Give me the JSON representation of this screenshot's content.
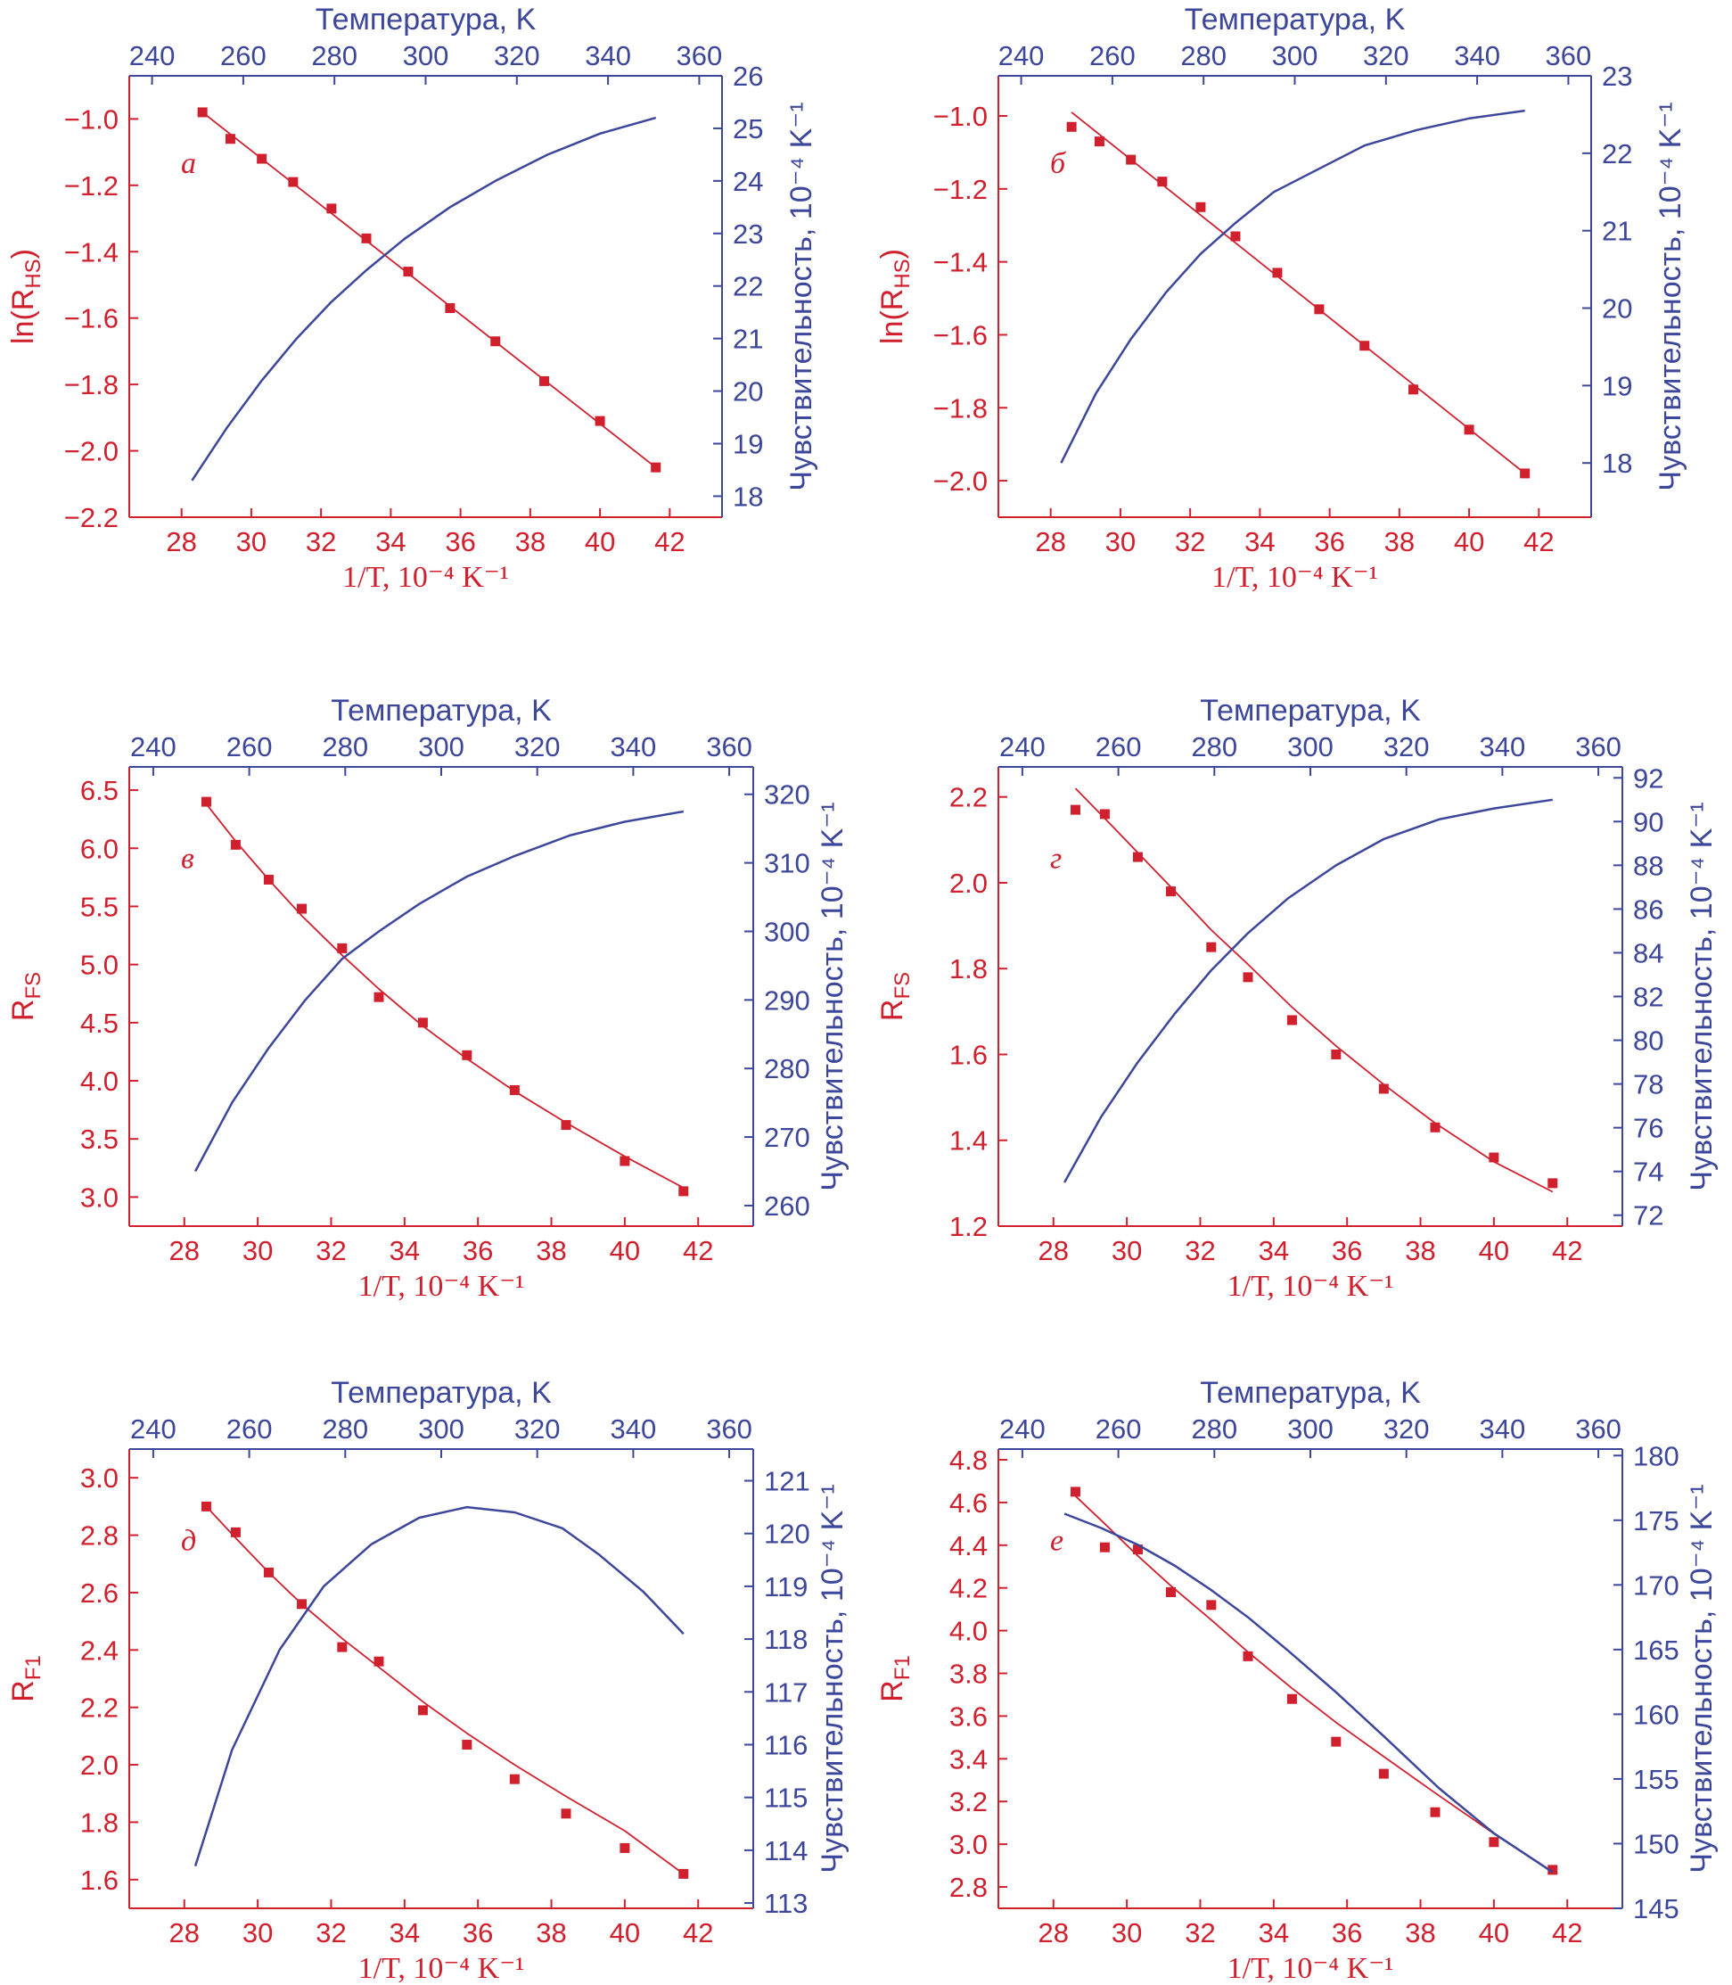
{
  "colors": {
    "red": "#d0202e",
    "blue": "#3c469a"
  },
  "chart_data": [
    {
      "id": "a",
      "panel_label": "а",
      "type": "line",
      "xlabel": "1/T, 10⁻⁴ K⁻¹",
      "ylabel": "ln(R",
      "ylabel_sub": "HS",
      "ylabel_suffix": ")",
      "y2label": "Чувствительность, 10⁻⁴ K⁻¹",
      "x2label": "Температура, K",
      "xlim": [
        26.5,
        43.5
      ],
      "xticks": [
        28,
        30,
        32,
        34,
        36,
        38,
        40,
        42
      ],
      "ylim": [
        -2.2,
        -0.87
      ],
      "yticks": [
        -2.2,
        -2.0,
        -1.8,
        -1.6,
        -1.4,
        -1.2,
        -1.0
      ],
      "ydecimals": 1,
      "y2lim": [
        17.6,
        26
      ],
      "y2ticks": [
        18,
        19,
        20,
        21,
        22,
        23,
        24,
        25,
        26
      ],
      "y2decimals": 0,
      "x2lim": [
        235,
        365
      ],
      "x2ticks": [
        240,
        260,
        280,
        300,
        320,
        340,
        360
      ],
      "series": [
        {
          "kind": "points",
          "color": "red",
          "x": [
            28.6,
            29.4,
            30.3,
            31.2,
            32.3,
            33.3,
            34.5,
            35.7,
            37.0,
            38.4,
            40.0,
            41.6
          ],
          "y": [
            -0.98,
            -1.06,
            -1.12,
            -1.19,
            -1.27,
            -1.36,
            -1.46,
            -1.57,
            -1.67,
            -1.79,
            -1.91,
            -2.05
          ]
        },
        {
          "kind": "fit",
          "color": "red",
          "x": [
            28.6,
            41.6
          ],
          "y": [
            -0.98,
            -2.05
          ]
        },
        {
          "kind": "sensitivity",
          "color": "blue",
          "x": [
            28.3,
            29.3,
            30.3,
            31.3,
            32.3,
            33.3,
            34.4,
            35.7,
            37.0,
            38.5,
            40.0,
            41.6
          ],
          "y": [
            18.3,
            19.3,
            20.2,
            21.0,
            21.7,
            22.3,
            22.9,
            23.5,
            24.0,
            24.5,
            24.9,
            25.2
          ]
        }
      ]
    },
    {
      "id": "b",
      "panel_label": "б",
      "type": "line",
      "xlabel": "1/T, 10⁻⁴ K⁻¹",
      "ylabel": "ln(R",
      "ylabel_sub": "HS",
      "ylabel_suffix": ")",
      "y2label": "Чувствительность, 10⁻⁴ K⁻¹",
      "x2label": "Температура, K",
      "xlim": [
        26.5,
        43.5
      ],
      "xticks": [
        28,
        30,
        32,
        34,
        36,
        38,
        40,
        42
      ],
      "ylim": [
        -2.1,
        -0.89
      ],
      "yticks": [
        -2.0,
        -1.8,
        -1.6,
        -1.4,
        -1.2,
        -1.0
      ],
      "ydecimals": 1,
      "y2lim": [
        17.3,
        23
      ],
      "y2ticks": [
        18,
        19,
        20,
        21,
        22,
        23
      ],
      "y2decimals": 0,
      "x2lim": [
        235,
        365
      ],
      "x2ticks": [
        240,
        260,
        280,
        300,
        320,
        340,
        360
      ],
      "series": [
        {
          "kind": "points",
          "color": "red",
          "x": [
            28.6,
            29.4,
            30.3,
            31.2,
            32.3,
            33.3,
            34.5,
            35.7,
            37.0,
            38.4,
            40.0,
            41.6
          ],
          "y": [
            -1.03,
            -1.07,
            -1.12,
            -1.18,
            -1.25,
            -1.33,
            -1.43,
            -1.53,
            -1.63,
            -1.75,
            -1.86,
            -1.98
          ]
        },
        {
          "kind": "fit",
          "color": "red",
          "x": [
            28.6,
            41.6
          ],
          "y": [
            -0.99,
            -1.98
          ]
        },
        {
          "kind": "sensitivity",
          "color": "blue",
          "x": [
            28.3,
            29.3,
            30.3,
            31.3,
            32.3,
            33.3,
            34.4,
            35.7,
            37.0,
            38.5,
            40.0,
            41.6
          ],
          "y": [
            18.0,
            18.9,
            19.6,
            20.2,
            20.7,
            21.1,
            21.5,
            21.8,
            22.1,
            22.3,
            22.45,
            22.55
          ]
        }
      ]
    },
    {
      "id": "c",
      "panel_label": "в",
      "type": "line",
      "xlabel": "1/T, 10⁻⁴ K⁻¹",
      "ylabel": "R",
      "ylabel_sub": "FS",
      "ylabel_suffix": "",
      "y2label": "Чувствительность, 10⁻⁴ K⁻¹",
      "x2label": "Температура, K",
      "xlim": [
        26.5,
        43.5
      ],
      "xticks": [
        28,
        30,
        32,
        34,
        36,
        38,
        40,
        42
      ],
      "ylim": [
        2.75,
        6.7
      ],
      "yticks": [
        3.0,
        3.5,
        4.0,
        4.5,
        5.0,
        5.5,
        6.0,
        6.5
      ],
      "ydecimals": 1,
      "y2lim": [
        257,
        324
      ],
      "y2ticks": [
        260,
        270,
        280,
        290,
        300,
        310,
        320
      ],
      "y2decimals": 0,
      "x2lim": [
        235,
        365
      ],
      "x2ticks": [
        240,
        260,
        280,
        300,
        320,
        340,
        360
      ],
      "series": [
        {
          "kind": "points",
          "color": "red",
          "x": [
            28.6,
            29.4,
            30.3,
            31.2,
            32.3,
            33.3,
            34.5,
            35.7,
            37.0,
            38.4,
            40.0,
            41.6
          ],
          "y": [
            6.4,
            6.03,
            5.73,
            5.48,
            5.14,
            4.72,
            4.5,
            4.22,
            3.92,
            3.62,
            3.31,
            3.05
          ]
        },
        {
          "kind": "fit",
          "color": "red",
          "x": [
            28.6,
            29.4,
            30.3,
            31.2,
            32.3,
            33.3,
            34.5,
            35.7,
            37.0,
            38.4,
            40.0,
            41.6
          ],
          "y": [
            6.38,
            6.06,
            5.73,
            5.42,
            5.08,
            4.79,
            4.47,
            4.19,
            3.91,
            3.64,
            3.35,
            3.08
          ]
        },
        {
          "kind": "sensitivity",
          "color": "blue",
          "x": [
            28.3,
            29.3,
            30.3,
            31.3,
            32.3,
            33.3,
            34.4,
            35.7,
            37.0,
            38.5,
            40.0,
            41.6
          ],
          "y": [
            265,
            275,
            283,
            290,
            296,
            300,
            304,
            308,
            311,
            314,
            316,
            317.5
          ]
        }
      ]
    },
    {
      "id": "d",
      "panel_label": "г",
      "type": "line",
      "xlabel": "1/T, 10⁻⁴ K⁻¹",
      "ylabel": "R",
      "ylabel_sub": "FS",
      "ylabel_suffix": "",
      "y2label": "Чувствительность, 10⁻⁴ K⁻¹",
      "x2label": "Температура, K",
      "xlim": [
        26.5,
        43.5
      ],
      "xticks": [
        28,
        30,
        32,
        34,
        36,
        38,
        40,
        42
      ],
      "ylim": [
        1.2,
        2.27
      ],
      "yticks": [
        1.2,
        1.4,
        1.6,
        1.8,
        2.0,
        2.2
      ],
      "ydecimals": 1,
      "y2lim": [
        71.5,
        92.5
      ],
      "y2ticks": [
        72,
        74,
        76,
        78,
        80,
        82,
        84,
        86,
        88,
        90,
        92
      ],
      "y2decimals": 0,
      "x2lim": [
        235,
        365
      ],
      "x2ticks": [
        240,
        260,
        280,
        300,
        320,
        340,
        360
      ],
      "series": [
        {
          "kind": "points",
          "color": "red",
          "x": [
            28.6,
            29.4,
            30.3,
            31.2,
            32.3,
            33.3,
            34.5,
            35.7,
            37.0,
            38.4,
            40.0,
            41.6
          ],
          "y": [
            2.17,
            2.16,
            2.06,
            1.98,
            1.85,
            1.78,
            1.68,
            1.6,
            1.52,
            1.43,
            1.36,
            1.3
          ]
        },
        {
          "kind": "fit",
          "color": "red",
          "x": [
            28.6,
            29.4,
            30.3,
            31.2,
            32.3,
            33.3,
            34.5,
            35.7,
            37.0,
            38.4,
            40.0,
            41.6
          ],
          "y": [
            2.22,
            2.15,
            2.07,
            1.99,
            1.89,
            1.81,
            1.71,
            1.62,
            1.53,
            1.44,
            1.35,
            1.28
          ]
        },
        {
          "kind": "sensitivity",
          "color": "blue",
          "x": [
            28.3,
            29.3,
            30.3,
            31.3,
            32.3,
            33.3,
            34.4,
            35.7,
            37.0,
            38.5,
            40.0,
            41.6
          ],
          "y": [
            73.5,
            76.5,
            79.0,
            81.2,
            83.2,
            84.9,
            86.5,
            88.0,
            89.2,
            90.1,
            90.6,
            91.0
          ]
        }
      ]
    },
    {
      "id": "e",
      "panel_label": "д",
      "type": "line",
      "xlabel": "1/T, 10⁻⁴ K⁻¹",
      "ylabel": "R",
      "ylabel_sub": "F1",
      "ylabel_suffix": "",
      "y2label": "Чувствительность, 10⁻⁴ K⁻¹",
      "x2label": "Температура, K",
      "xlim": [
        26.5,
        43.5
      ],
      "xticks": [
        28,
        30,
        32,
        34,
        36,
        38,
        40,
        42
      ],
      "ylim": [
        1.5,
        3.1
      ],
      "yticks": [
        1.6,
        1.8,
        2.0,
        2.2,
        2.4,
        2.6,
        2.8,
        3.0
      ],
      "ydecimals": 1,
      "y2lim": [
        112.9,
        121.6
      ],
      "y2ticks": [
        113,
        114,
        115,
        116,
        117,
        118,
        119,
        120,
        121
      ],
      "y2decimals": 0,
      "x2lim": [
        235,
        365
      ],
      "x2ticks": [
        240,
        260,
        280,
        300,
        320,
        340,
        360
      ],
      "series": [
        {
          "kind": "points",
          "color": "red",
          "x": [
            28.6,
            29.4,
            30.3,
            31.2,
            32.3,
            33.3,
            34.5,
            35.7,
            37.0,
            38.4,
            40.0,
            41.6
          ],
          "y": [
            2.9,
            2.81,
            2.67,
            2.56,
            2.41,
            2.36,
            2.19,
            2.07,
            1.95,
            1.83,
            1.71,
            1.62
          ]
        },
        {
          "kind": "fit",
          "color": "red",
          "x": [
            28.6,
            29.4,
            30.3,
            31.2,
            32.3,
            33.3,
            34.5,
            35.7,
            37.0,
            38.4,
            40.0,
            41.6
          ],
          "y": [
            2.9,
            2.79,
            2.67,
            2.56,
            2.44,
            2.34,
            2.22,
            2.11,
            2.0,
            1.89,
            1.77,
            1.62
          ]
        },
        {
          "kind": "sensitivity",
          "color": "blue",
          "x": [
            28.3,
            29.3,
            30.6,
            31.8,
            33.1,
            34.4,
            35.7,
            37.0,
            38.3,
            39.3,
            40.5,
            41.6
          ],
          "y": [
            113.7,
            115.9,
            117.8,
            119.0,
            119.8,
            120.3,
            120.5,
            120.4,
            120.1,
            119.6,
            118.9,
            118.1
          ]
        }
      ]
    },
    {
      "id": "f",
      "panel_label": "е",
      "type": "line",
      "xlabel": "1/T, 10⁻⁴ K⁻¹",
      "ylabel": "R",
      "ylabel_sub": "F1",
      "ylabel_suffix": "",
      "y2label": "Чувствительность, 10⁻⁴ K⁻¹",
      "x2label": "Температура, K",
      "xlim": [
        26.5,
        43.5
      ],
      "xticks": [
        28,
        30,
        32,
        34,
        36,
        38,
        40,
        42
      ],
      "ylim": [
        2.7,
        4.85
      ],
      "yticks": [
        2.8,
        3.0,
        3.2,
        3.4,
        3.6,
        3.8,
        4.0,
        4.2,
        4.4,
        4.6,
        4.8
      ],
      "ydecimals": 1,
      "y2lim": [
        145,
        180.5
      ],
      "y2ticks": [
        145,
        150,
        155,
        160,
        165,
        170,
        175,
        180
      ],
      "y2decimals": 0,
      "x2lim": [
        235,
        365
      ],
      "x2ticks": [
        240,
        260,
        280,
        300,
        320,
        340,
        360
      ],
      "series": [
        {
          "kind": "points",
          "color": "red",
          "x": [
            28.6,
            29.4,
            30.3,
            31.2,
            32.3,
            33.3,
            34.5,
            35.7,
            37.0,
            38.4,
            40.0,
            41.6
          ],
          "y": [
            4.65,
            4.39,
            4.38,
            4.18,
            4.12,
            3.88,
            3.68,
            3.48,
            3.33,
            3.15,
            3.01,
            2.88
          ]
        },
        {
          "kind": "fit",
          "color": "red",
          "x": [
            28.6,
            29.4,
            30.3,
            31.2,
            32.3,
            33.3,
            34.5,
            35.7,
            37.0,
            38.4,
            40.0,
            41.6
          ],
          "y": [
            4.63,
            4.5,
            4.35,
            4.21,
            4.05,
            3.9,
            3.73,
            3.57,
            3.41,
            3.24,
            3.05,
            2.87
          ]
        },
        {
          "kind": "sensitivity",
          "color": "blue",
          "x": [
            28.3,
            29.3,
            30.3,
            31.3,
            32.3,
            33.3,
            34.4,
            35.7,
            37.0,
            38.5,
            40.0,
            41.6
          ],
          "y": [
            175.5,
            174.4,
            173.1,
            171.5,
            169.6,
            167.5,
            164.9,
            161.7,
            158.3,
            154.3,
            150.8,
            147.8
          ]
        }
      ]
    }
  ]
}
